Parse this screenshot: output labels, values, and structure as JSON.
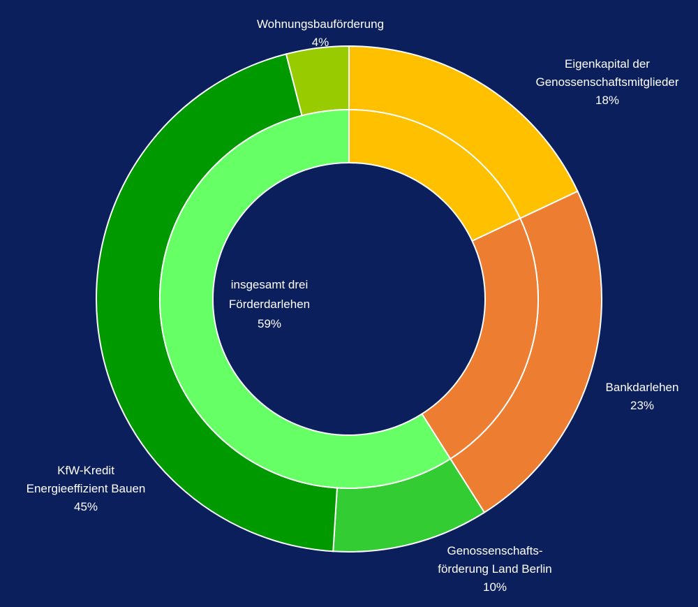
{
  "chart_data": {
    "type": "pie",
    "variant": "donut-two-ring",
    "outer_ring": [
      {
        "label_lines": [
          "Eigenkapital der",
          "Genossenschaftsmitglieder"
        ],
        "value_label": "18%",
        "value": 18,
        "color": "#ffc000"
      },
      {
        "label_lines": [
          "Bankdarlehen"
        ],
        "value_label": "23%",
        "value": 23,
        "color": "#ed7d31"
      },
      {
        "label_lines": [
          "Genossenschafts-",
          "förderung Land Berlin"
        ],
        "value_label": "10%",
        "value": 10,
        "color": "#33cc33"
      },
      {
        "label_lines": [
          "KfW-Kredit",
          "Energieeffizient Bauen"
        ],
        "value_label": "45%",
        "value": 45,
        "color": "#009900"
      },
      {
        "label_lines": [
          "Wohnungsbauförderung"
        ],
        "value_label": "4%",
        "value": 4,
        "color": "#99cc00"
      }
    ],
    "inner_ring": [
      {
        "value": 18,
        "color": "#ffc000"
      },
      {
        "value": 23,
        "color": "#ed7d31"
      },
      {
        "value": 59,
        "color": "#66ff66"
      }
    ],
    "center_label": {
      "label_lines": [
        "insgesamt drei",
        "Förderdarlehen"
      ],
      "value_label": "59%"
    }
  },
  "colors": {
    "background": "#0b1f5c",
    "separator": "#ffffff",
    "text": "#ffffff"
  }
}
